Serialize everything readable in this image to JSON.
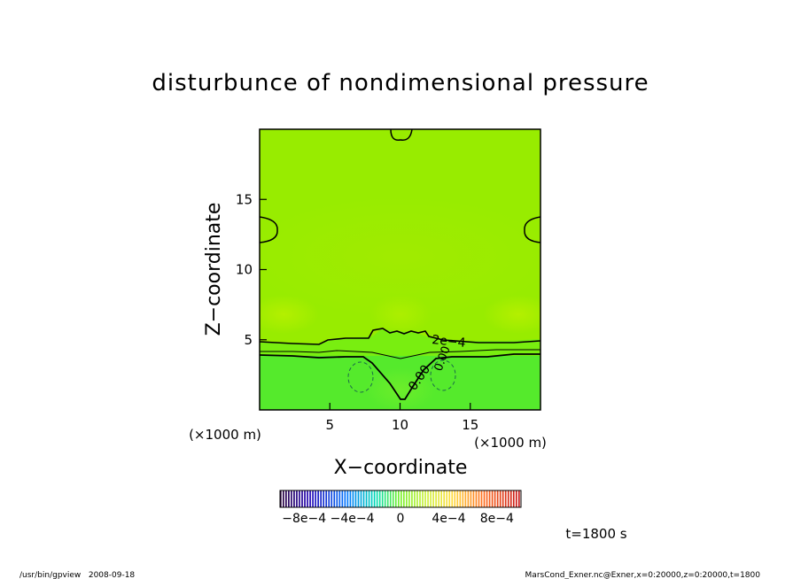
{
  "chart_data": {
    "type": "heatmap",
    "title": "disturbunce of nondimensional pressure",
    "xlabel": "X−coordinate",
    "ylabel": "Z−coordinate",
    "x_unit": "(×1000 m)",
    "y_unit": "(×1000 m)",
    "xlim": [
      0,
      20
    ],
    "ylim": [
      0,
      20
    ],
    "xticks": [
      5,
      10,
      15
    ],
    "yticks": [
      5,
      10,
      15
    ],
    "xtick_labels": [
      "5",
      "10",
      "15"
    ],
    "ytick_labels": [
      "5",
      "10",
      "15"
    ],
    "contour_labels": [
      "2e−4",
      "0.00",
      "0.00"
    ],
    "colorbar": {
      "range": [
        -0.001,
        0.001
      ],
      "ticks": [
        -0.0008,
        -0.0004,
        0,
        0.0004,
        0.0008
      ],
      "tick_labels": [
        "−8e−4",
        "−4e−4",
        "0",
        "4e−4",
        "8e−4"
      ]
    },
    "time_label": "t=1800 s"
  },
  "footer": {
    "left": "/usr/bin/gpview   2008-09-18",
    "right": "MarsCond_Exner.nc@Exner,x=0:20000,z=0:20000,t=1800"
  }
}
